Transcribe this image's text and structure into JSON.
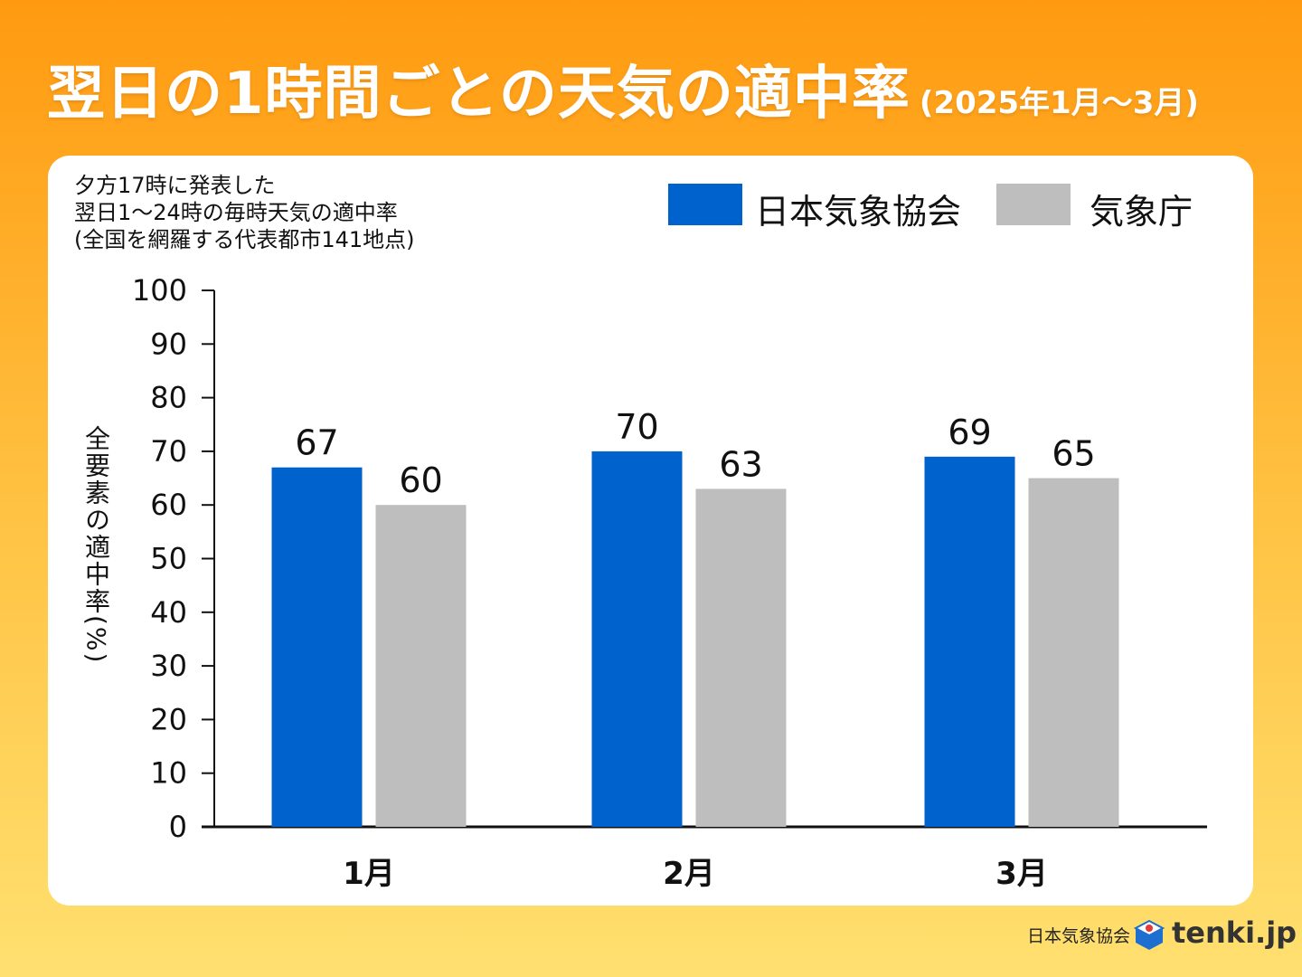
{
  "header": {
    "title": "翌日の1時間ごとの天気の適中率",
    "subtitle": "(2025年1月〜3月)"
  },
  "note": {
    "line1": "夕方17時に発表した",
    "line2": "翌日1〜24時の毎時天気の適中率",
    "line3": "(全国を網羅する代表都市141地点)"
  },
  "legend": {
    "jwa": "日本気象協会",
    "jma": "気象庁"
  },
  "footer": {
    "org": "日本気象協会",
    "brand": "tenki.jp"
  },
  "colors": {
    "jwa": "#0062cc",
    "jma": "#bebebe",
    "axis": "#111111"
  },
  "chart_data": {
    "type": "bar",
    "title": "翌日の1時間ごとの天気の適中率",
    "ylabel": "全要素の適中率(%)",
    "xlabel": "",
    "categories": [
      "1月",
      "2月",
      "3月"
    ],
    "ylim": [
      0,
      100
    ],
    "yticks": [
      0,
      10,
      20,
      30,
      40,
      50,
      60,
      70,
      80,
      90,
      100
    ],
    "series": [
      {
        "name": "日本気象協会",
        "values": [
          67,
          70,
          69
        ],
        "labels": [
          "67",
          "70",
          "69"
        ]
      },
      {
        "name": "気象庁",
        "values": [
          60,
          63,
          65
        ],
        "labels": [
          "60",
          "63",
          "65"
        ]
      }
    ],
    "legend": "top-right",
    "grid": false
  }
}
